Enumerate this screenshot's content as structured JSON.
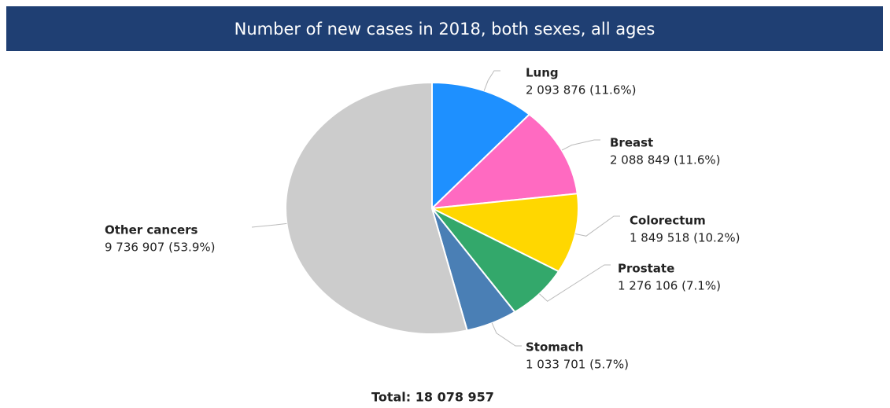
{
  "chart_data": {
    "type": "pie",
    "title": "Number of new cases in 2018, both sexes, all ages",
    "categories": [
      "Lung",
      "Breast",
      "Colorectum",
      "Prostate",
      "Stomach",
      "Other cancers"
    ],
    "values": [
      2093876,
      2088849,
      1849518,
      1276106,
      1033701,
      9736907
    ],
    "value_labels": [
      "2 093 876 (11.6%)",
      "2 088 849 (11.6%)",
      "1 849 518 (10.2%)",
      "1 276 106 (7.1%)",
      "1 033 701 (5.7%)",
      "9 736 907 (53.9%)"
    ],
    "colors": [
      "#1e90ff",
      "#ff6ac1",
      "#ffd700",
      "#33a86b",
      "#4a7fb5",
      "#cccccc"
    ],
    "total": "Total: 18 078 957"
  }
}
